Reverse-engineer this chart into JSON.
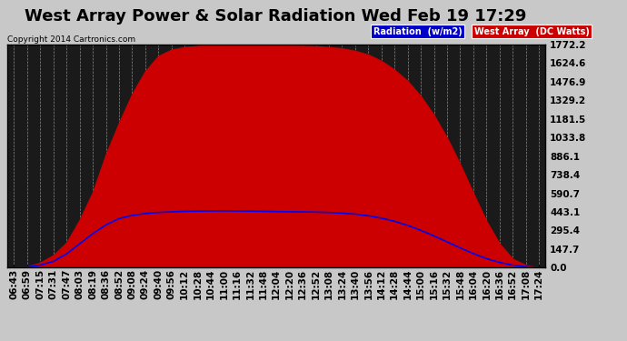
{
  "title": "West Array Power & Solar Radiation Wed Feb 19 17:29",
  "copyright": "Copyright 2014 Cartronics.com",
  "bg_color": "#c8c8c8",
  "plot_bg_color": "#1a1a1a",
  "legend_radiation_label": "Radiation  (w/m2)",
  "legend_west_label": "West Array  (DC Watts)",
  "legend_radiation_bg": "#0000cc",
  "legend_west_bg": "#cc0000",
  "yticks": [
    0.0,
    147.7,
    295.4,
    443.1,
    590.7,
    738.4,
    886.1,
    1033.8,
    1181.5,
    1329.2,
    1476.9,
    1624.6,
    1772.2
  ],
  "ymax": 1772.2,
  "x_labels": [
    "06:43",
    "06:59",
    "07:15",
    "07:31",
    "07:47",
    "08:03",
    "08:19",
    "08:36",
    "08:52",
    "09:08",
    "09:24",
    "09:40",
    "09:56",
    "10:12",
    "10:28",
    "10:44",
    "11:00",
    "11:16",
    "11:32",
    "11:48",
    "12:04",
    "12:20",
    "12:36",
    "12:52",
    "13:08",
    "13:24",
    "13:40",
    "13:56",
    "14:12",
    "14:28",
    "14:44",
    "15:00",
    "15:16",
    "15:32",
    "15:48",
    "16:04",
    "16:20",
    "16:36",
    "16:52",
    "17:08",
    "17:24"
  ],
  "red_fill_data": [
    0,
    10,
    40,
    100,
    200,
    380,
    600,
    900,
    1150,
    1380,
    1560,
    1680,
    1730,
    1750,
    1760,
    1765,
    1768,
    1770,
    1770,
    1768,
    1765,
    1762,
    1760,
    1758,
    1750,
    1740,
    1720,
    1690,
    1640,
    1570,
    1480,
    1360,
    1210,
    1030,
    820,
    590,
    370,
    190,
    70,
    20,
    2
  ],
  "blue_line_data": [
    0,
    5,
    20,
    50,
    110,
    190,
    270,
    340,
    390,
    415,
    430,
    438,
    443,
    447,
    449,
    450,
    451,
    450,
    449,
    447,
    445,
    444,
    443,
    441,
    438,
    433,
    425,
    412,
    393,
    368,
    336,
    296,
    252,
    205,
    157,
    112,
    72,
    42,
    20,
    8,
    1
  ],
  "grid_color": "#888888",
  "red_color": "#cc0000",
  "blue_color": "#0000ee",
  "title_fontsize": 13,
  "tick_fontsize": 7.5,
  "font_color": "#000000",
  "title_color": "#000000"
}
